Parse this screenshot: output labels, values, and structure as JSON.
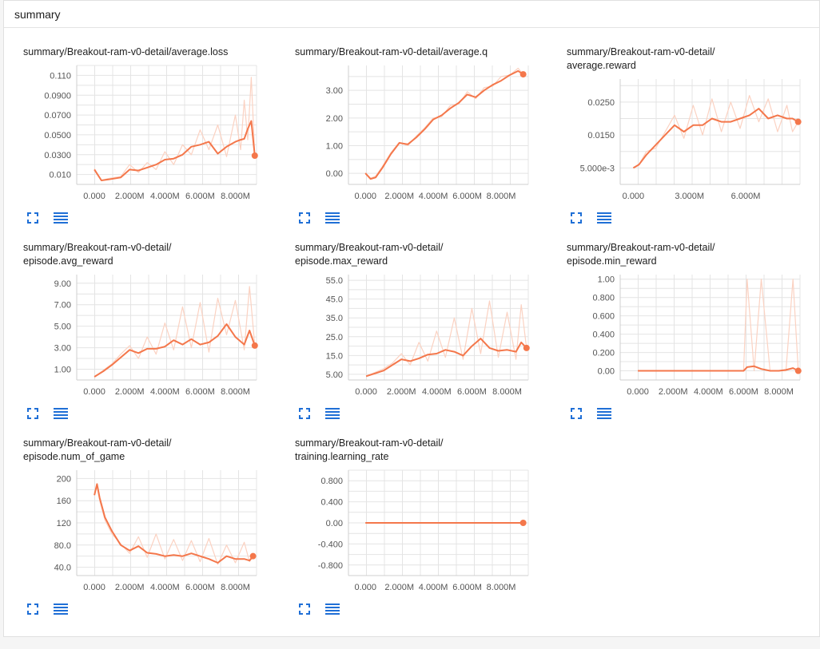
{
  "header": {
    "title": "summary"
  },
  "icons": {
    "fullscreen": "fullscreen-icon",
    "data": "list-icon"
  },
  "colors": {
    "smoothed": "#f4774b",
    "raw": "#fbd2c2"
  },
  "chart_data": [
    {
      "type": "line",
      "title_lines": [
        "summary/Breakout-ram-v0-detail/average.loss"
      ],
      "xlim": [
        -1000000,
        9200000
      ],
      "ylim": [
        0.0,
        0.12
      ],
      "xticks": [
        0,
        2000000,
        4000000,
        6000000,
        8000000
      ],
      "xtick_labels": [
        "0.000",
        "2.000M",
        "4.000M",
        "6.000M",
        "8.000M"
      ],
      "yticks": [
        0.01,
        0.03,
        0.05,
        0.07,
        0.09,
        0.11
      ],
      "ytick_labels": [
        "0.010",
        "0.0300",
        "0.0500",
        "0.0700",
        "0.0900",
        "0.110"
      ],
      "series": [
        {
          "x": [
            0,
            400000,
            800000,
            1500000,
            2000000,
            2500000,
            3000000,
            3500000,
            4000000,
            4500000,
            5000000,
            5500000,
            6000000,
            6500000,
            7000000,
            7500000,
            8000000,
            8300000,
            8500000,
            8700000,
            8900000,
            9100000
          ],
          "y": [
            0.015,
            0.004,
            0.005,
            0.007,
            0.015,
            0.014,
            0.017,
            0.02,
            0.025,
            0.026,
            0.03,
            0.038,
            0.04,
            0.043,
            0.031,
            0.038,
            0.043,
            0.045,
            0.046,
            0.056,
            0.064,
            0.029
          ],
          "raw_y": [
            0.016,
            0.004,
            0.006,
            0.008,
            0.02,
            0.012,
            0.022,
            0.015,
            0.033,
            0.02,
            0.04,
            0.03,
            0.055,
            0.035,
            0.06,
            0.028,
            0.07,
            0.035,
            0.085,
            0.045,
            0.108,
            0.029
          ]
        }
      ],
      "last_point": {
        "x": 9100000,
        "y": 0.029
      }
    },
    {
      "type": "line",
      "title_lines": [
        "summary/Breakout-ram-v0-detail/average.q"
      ],
      "xlim": [
        -1000000,
        9600000
      ],
      "ylim": [
        -0.4,
        3.9
      ],
      "xticks": [
        0,
        2000000,
        4000000,
        6000000,
        8000000
      ],
      "xtick_labels": [
        "0.000",
        "2.000M",
        "4.000M",
        "6.000M",
        "8.000M"
      ],
      "yticks": [
        0,
        1,
        2,
        3
      ],
      "ytick_labels": [
        "0.00",
        "1.00",
        "2.00",
        "3.00"
      ],
      "series": [
        {
          "x": [
            0,
            300000,
            600000,
            1000000,
            1500000,
            2000000,
            2500000,
            3000000,
            3500000,
            4000000,
            4500000,
            5000000,
            5500000,
            6000000,
            6500000,
            7000000,
            7500000,
            8000000,
            8500000,
            9000000,
            9300000
          ],
          "y": [
            0.0,
            -0.2,
            -0.15,
            0.2,
            0.7,
            1.1,
            1.05,
            1.3,
            1.6,
            1.95,
            2.1,
            2.35,
            2.55,
            2.85,
            2.75,
            3.0,
            3.2,
            3.35,
            3.55,
            3.7,
            3.58
          ],
          "raw_y": [
            0.02,
            -0.18,
            -0.1,
            0.25,
            0.75,
            1.12,
            1.0,
            1.35,
            1.65,
            2.0,
            2.05,
            2.45,
            2.5,
            2.95,
            2.7,
            3.1,
            3.15,
            3.5,
            3.55,
            3.8,
            3.58
          ]
        }
      ],
      "last_point": {
        "x": 9300000,
        "y": 3.58
      }
    },
    {
      "type": "line",
      "title_lines": [
        "summary/Breakout-ram-v0-detail/",
        "average.reward"
      ],
      "xlim": [
        -700000,
        8900000
      ],
      "ylim": [
        0.0,
        0.032
      ],
      "xticks": [
        0,
        3000000,
        6000000
      ],
      "xtick_labels": [
        "0.000",
        "3.000M",
        "6.000M"
      ],
      "yticks": [
        0.005,
        0.015,
        0.025
      ],
      "ytick_labels": [
        "5.000e-3",
        "0.0150",
        "0.0250"
      ],
      "series": [
        {
          "x": [
            0,
            300000,
            700000,
            1200000,
            1700000,
            2200000,
            2700000,
            3200000,
            3700000,
            4200000,
            4700000,
            5200000,
            5700000,
            6200000,
            6700000,
            7200000,
            7700000,
            8200000,
            8500000,
            8800000
          ],
          "y": [
            0.005,
            0.006,
            0.009,
            0.012,
            0.015,
            0.018,
            0.016,
            0.018,
            0.018,
            0.02,
            0.019,
            0.019,
            0.02,
            0.021,
            0.023,
            0.02,
            0.021,
            0.02,
            0.02,
            0.019
          ],
          "raw_y": [
            0.005,
            0.006,
            0.01,
            0.011,
            0.016,
            0.021,
            0.014,
            0.024,
            0.015,
            0.026,
            0.016,
            0.025,
            0.017,
            0.027,
            0.019,
            0.026,
            0.016,
            0.024,
            0.016,
            0.019
          ]
        }
      ],
      "last_point": {
        "x": 8800000,
        "y": 0.019
      }
    },
    {
      "type": "line",
      "title_lines": [
        "summary/Breakout-ram-v0-detail/",
        "episode.avg_reward"
      ],
      "xlim": [
        -1000000,
        9200000
      ],
      "ylim": [
        0.0,
        9.8
      ],
      "xticks": [
        0,
        2000000,
        4000000,
        6000000,
        8000000
      ],
      "xtick_labels": [
        "0.000",
        "2.000M",
        "4.000M",
        "6.000M",
        "8.000M"
      ],
      "yticks": [
        1,
        3,
        5,
        7,
        9
      ],
      "ytick_labels": [
        "1.00",
        "3.00",
        "5.00",
        "7.00",
        "9.00"
      ],
      "series": [
        {
          "x": [
            0,
            500000,
            1000000,
            1500000,
            2000000,
            2500000,
            3000000,
            3500000,
            4000000,
            4500000,
            5000000,
            5500000,
            6000000,
            6500000,
            7000000,
            7500000,
            8000000,
            8500000,
            8800000,
            9100000
          ],
          "y": [
            0.3,
            0.8,
            1.4,
            2.1,
            2.8,
            2.5,
            2.9,
            2.9,
            3.1,
            3.7,
            3.3,
            3.8,
            3.3,
            3.5,
            4.1,
            5.2,
            4.0,
            3.3,
            4.6,
            3.2
          ],
          "raw_y": [
            0.3,
            0.9,
            1.5,
            2.4,
            3.2,
            2.0,
            4.0,
            2.4,
            5.3,
            2.8,
            6.8,
            3.0,
            7.2,
            2.6,
            7.6,
            4.2,
            7.4,
            2.8,
            8.7,
            3.2
          ]
        }
      ],
      "last_point": {
        "x": 9100000,
        "y": 3.2
      }
    },
    {
      "type": "line",
      "title_lines": [
        "summary/Breakout-ram-v0-detail/",
        "episode.max_reward"
      ],
      "xlim": [
        -1000000,
        9200000
      ],
      "ylim": [
        2.0,
        58.0
      ],
      "xticks": [
        0,
        2000000,
        4000000,
        6000000,
        8000000
      ],
      "xtick_labels": [
        "0.000",
        "2.000M",
        "4.000M",
        "6.000M",
        "8.000M"
      ],
      "yticks": [
        5,
        15,
        25,
        35,
        45,
        55
      ],
      "ytick_labels": [
        "5.00",
        "15.0",
        "25.0",
        "35.0",
        "45.0",
        "55.0"
      ],
      "series": [
        {
          "x": [
            0,
            500000,
            1000000,
            1500000,
            2000000,
            2500000,
            3000000,
            3500000,
            4000000,
            4500000,
            5000000,
            5500000,
            6000000,
            6500000,
            7000000,
            7500000,
            8000000,
            8500000,
            8800000,
            9100000
          ],
          "y": [
            4.0,
            5.5,
            7.0,
            10.0,
            13.0,
            12.0,
            13.5,
            15.5,
            16.0,
            18.0,
            17.0,
            15.0,
            20.0,
            24.0,
            19.0,
            17.5,
            18.0,
            17.0,
            22.0,
            19.0
          ],
          "raw_y": [
            4.0,
            6.0,
            8.0,
            11.0,
            16.0,
            10.0,
            22.0,
            12.0,
            28.0,
            14.0,
            35.0,
            13.0,
            40.0,
            16.0,
            44.0,
            14.0,
            38.0,
            13.0,
            42.0,
            19.0
          ]
        }
      ],
      "last_point": {
        "x": 9100000,
        "y": 19.0
      }
    },
    {
      "type": "line",
      "title_lines": [
        "summary/Breakout-ram-v0-detail/",
        "episode.min_reward"
      ],
      "xlim": [
        -1000000,
        9200000
      ],
      "ylim": [
        -0.1,
        1.05
      ],
      "xticks": [
        0,
        2000000,
        4000000,
        6000000,
        8000000
      ],
      "xtick_labels": [
        "0.000",
        "2.000M",
        "4.000M",
        "6.000M",
        "8.000M"
      ],
      "yticks": [
        0,
        0.2,
        0.4,
        0.6,
        0.8,
        1.0
      ],
      "ytick_labels": [
        "0.00",
        "0.200",
        "0.400",
        "0.600",
        "0.800",
        "1.00"
      ],
      "series": [
        {
          "x": [
            0,
            1000000,
            2000000,
            3000000,
            4000000,
            5000000,
            5500000,
            6000000,
            6200000,
            6600000,
            7000000,
            7500000,
            8000000,
            8400000,
            8800000,
            9100000
          ],
          "y": [
            0,
            0,
            0,
            0,
            0,
            0,
            0,
            0,
            0.04,
            0.05,
            0.02,
            0,
            0,
            0.01,
            0.03,
            0
          ],
          "raw_y": [
            0,
            0,
            0,
            0,
            0,
            0,
            0,
            0,
            1.0,
            0,
            1.0,
            0,
            0,
            0,
            1.0,
            0
          ]
        }
      ],
      "last_point": {
        "x": 9100000,
        "y": 0
      }
    },
    {
      "type": "line",
      "title_lines": [
        "summary/Breakout-ram-v0-detail/",
        "episode.num_of_game"
      ],
      "xlim": [
        -1000000,
        9200000
      ],
      "ylim": [
        25,
        215
      ],
      "xticks": [
        0,
        2000000,
        4000000,
        6000000,
        8000000
      ],
      "xtick_labels": [
        "0.000",
        "2.000M",
        "4.000M",
        "6.000M",
        "8.000M"
      ],
      "yticks": [
        40,
        80,
        120,
        160,
        200
      ],
      "ytick_labels": [
        "40.0",
        "80.0",
        "120",
        "160",
        "200"
      ],
      "series": [
        {
          "x": [
            0,
            150000,
            300000,
            600000,
            1000000,
            1500000,
            2000000,
            2500000,
            3000000,
            3500000,
            4000000,
            4500000,
            5000000,
            5500000,
            6000000,
            6500000,
            7000000,
            7500000,
            8000000,
            8500000,
            8800000,
            9000000
          ],
          "y": [
            170,
            190,
            165,
            130,
            105,
            80,
            70,
            78,
            66,
            64,
            60,
            62,
            60,
            65,
            60,
            55,
            48,
            60,
            55,
            55,
            52,
            60
          ],
          "raw_y": [
            175,
            185,
            160,
            125,
            100,
            82,
            65,
            95,
            58,
            100,
            55,
            90,
            52,
            88,
            50,
            92,
            45,
            80,
            48,
            85,
            50,
            60
          ]
        }
      ],
      "last_point": {
        "x": 9000000,
        "y": 60
      }
    },
    {
      "type": "line",
      "title_lines": [
        "summary/Breakout-ram-v0-detail/",
        "training.learning_rate"
      ],
      "xlim": [
        -1000000,
        9600000
      ],
      "ylim": [
        -1.0,
        1.0
      ],
      "xticks": [
        0,
        2000000,
        4000000,
        6000000,
        8000000
      ],
      "xtick_labels": [
        "0.000",
        "2.000M",
        "4.000M",
        "6.000M",
        "8.000M"
      ],
      "yticks": [
        -0.8,
        -0.4,
        0,
        0.4,
        0.8
      ],
      "ytick_labels": [
        "-0.800",
        "-0.400",
        "0.00",
        "0.400",
        "0.800"
      ],
      "series": [
        {
          "x": [
            0,
            9300000
          ],
          "y": [
            0,
            0
          ],
          "raw_y": [
            0,
            0
          ]
        }
      ],
      "last_point": {
        "x": 9300000,
        "y": 0
      }
    }
  ]
}
